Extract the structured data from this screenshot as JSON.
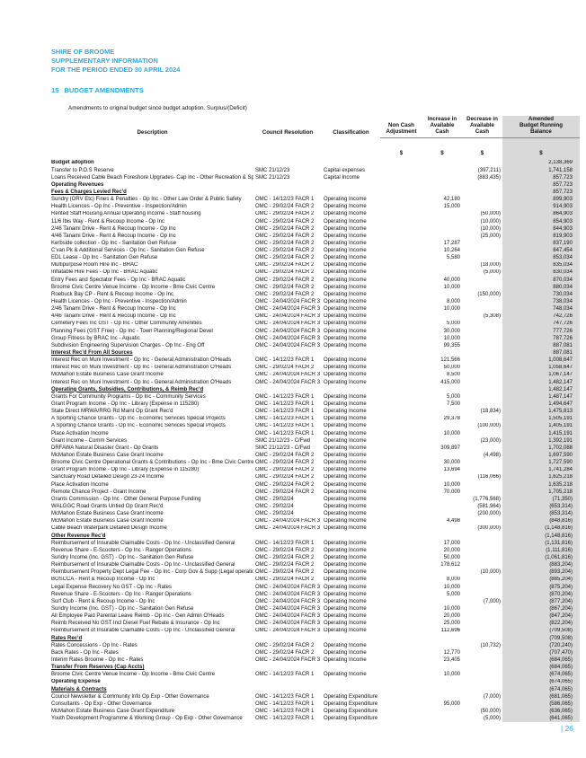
{
  "page": {
    "title_lines": [
      "SHIRE OF BROOME",
      "SUPPLEMENTARY INFORMATION",
      "FOR THE PERIOD ENDED 30 APRIL 2024"
    ],
    "section_number": "15",
    "section_title": "BUDGET AMENDMENTS",
    "subtitle": "Amendments to original budget since budget adoption. Surplus/(Deficit)",
    "page_number": "| 26",
    "accent_color": "#29ABE2",
    "balance_column_bg": "#D9D9D9"
  },
  "table": {
    "columns": {
      "description": "Description",
      "council_resolution": "Council Resolution",
      "classification": "Classification",
      "non_cash_adjustment": "Non Cash\nAdjustment",
      "increase_available_cash": "Increase in\nAvailable\nCash",
      "decrease_available_cash": "Decrease in\nAvailable\nCash",
      "amended_budget_running_balance": "Amended\nBudget Running\nBalance"
    },
    "currency_symbol": "$",
    "rows": [
      {
        "kind": "section",
        "d": "Budget adoption",
        "bal": "2,138,369"
      },
      {
        "d": "Transfer to P.O.S Reserve",
        "res": "SMC 21/12/23",
        "cls": "Capital expenses",
        "dec": "(397,211)",
        "bal": "1,741,158"
      },
      {
        "d": "Loans Received Cable Beach Foreshore Upgrades- Cap Inc - Other Recreation & Sport",
        "res": "SMC 21/12/23",
        "cls": "Capital Income",
        "dec": "(883,435)",
        "bal": "857,723"
      },
      {
        "kind": "section",
        "d": "Operating Revenues",
        "bal": "857,723"
      },
      {
        "kind": "subsection",
        "d": "Fees & Charges Levied Rec'd",
        "bal": "857,723"
      },
      {
        "d": "Sundry (ORV Etc) Fines & Penalties - Op Inc - Other Law Order & Public Safety",
        "res": "OMC - 14/12/23 FACR 1",
        "cls": "Operating Income",
        "inc": "42,180",
        "bal": "899,903"
      },
      {
        "d": "Health Licences - Op Inc - Preventive - Inspection/Admin",
        "res": "OMC - 29/02/24 FACR 2",
        "cls": "Operating Income",
        "inc": "15,000",
        "bal": "914,903"
      },
      {
        "d": "Rented Staff Housing Annual Operating Income - Staff housing",
        "res": "OMC - 29/02/24 FACR 2",
        "cls": "Operating Income",
        "dec": "(50,000)",
        "bal": "864,903"
      },
      {
        "d": "11/6 Ibis Way - Rent & Recoup Income - Op Inc",
        "res": "OMC - 29/02/24 FACR 2",
        "cls": "Operating Income",
        "dec": "(10,000)",
        "bal": "854,903"
      },
      {
        "d": "2/46 Tanami Drive - Rent & Recoup Income - Op Inc",
        "res": "OMC - 29/02/24 FACR 2",
        "cls": "Operating Income",
        "dec": "(10,000)",
        "bal": "844,903"
      },
      {
        "d": "4/46 Tanami Drive - Rent & Recoup Income - Op Inc",
        "res": "OMC - 29/02/24 FACR 2",
        "cls": "Operating Income",
        "dec": "(25,000)",
        "bal": "819,903"
      },
      {
        "d": "Kerbside collection - Op Inc - Sanitation Gen Refuse",
        "res": "OMC - 29/02/24 FACR 2",
        "cls": "Operating Income",
        "inc": "17,287",
        "bal": "837,190"
      },
      {
        "d": "C'van Pk & Additional  Services - Op Inc - Sanitation Gen Refuse",
        "res": "OMC - 29/02/24 FACR 2",
        "cls": "Operating Income",
        "inc": "10,264",
        "bal": "847,454"
      },
      {
        "d": "EDL Lease  - Op Inc - Sanitation Gen Refuse",
        "res": "OMC - 29/02/24 FACR 2",
        "cls": "Operating Income",
        "inc": "5,580",
        "bal": "853,034"
      },
      {
        "d": "Multipurpose Room Hire Inc - BRAC",
        "res": "OMC - 29/02/24 FACR 2",
        "cls": "Operating Income",
        "dec": "(18,000)",
        "bal": "835,034"
      },
      {
        "d": "Inflatable Hire Fees - Op Inc - BRAC Aquatic",
        "res": "OMC - 29/02/24 FACR 2",
        "cls": "Operating Income",
        "dec": "(5,000)",
        "bal": "830,034"
      },
      {
        "d": "Entry Fees and Spectator Fees - Op Inc - BRAC Aquatic",
        "res": "OMC - 29/02/24 FACR 2",
        "cls": "Operating Income",
        "inc": "40,000",
        "bal": "870,034"
      },
      {
        "d": "Broome Civic Centre Venue Income - Op Income - Bme Civic Centre",
        "res": "OMC - 29/02/24 FACR 2",
        "cls": "Operating Income",
        "inc": "10,000",
        "bal": "880,034"
      },
      {
        "d": "Roebuck Bay CP - Rent & Recoup Income - Op Inc",
        "res": "OMC - 29/02/24 FACR 2",
        "cls": "Operating Income",
        "dec": "(150,000)",
        "bal": "730,034"
      },
      {
        "d": "Health Licences - Op Inc - Preventive - Inspection/Admin",
        "res": "OMC - 24/04/2024 FACR 3",
        "cls": "Operating Income",
        "inc": "8,000",
        "bal": "738,034"
      },
      {
        "d": "2/46 Tanami Drive - Rent & Recoup Income - Op Inc",
        "res": "OMC - 24/04/2024 FACR 3",
        "cls": "Operating Income",
        "inc": "10,000",
        "bal": "748,034"
      },
      {
        "d": "4/46 Tanami Drive - Rent & Recoup Income - Op Inc",
        "res": "OMC - 24/04/2024 FACR 3",
        "cls": "Operating Income",
        "dec": "(5,308)",
        "bal": "742,726"
      },
      {
        "d": "Cemetery Fees Inc GST - Op Inc - Other Community Amenities",
        "res": "OMC - 24/04/2024 FACR 3",
        "cls": "Operating Income",
        "inc": "5,000",
        "bal": "747,726"
      },
      {
        "d": "Planning Fees (GST Free) - Op Inc - Town Planning/Regional Devel",
        "res": "OMC - 24/04/2024 FACR 3",
        "cls": "Operating Income",
        "inc": "30,000",
        "bal": "777,726"
      },
      {
        "d": "Group Fitness by BRAC Inc - Aquatic",
        "res": "OMC - 24/04/2024 FACR 3",
        "cls": "Operating Income",
        "inc": "10,000",
        "bal": "787,726"
      },
      {
        "d": "Subdivision Engineering Supervision Charges - Op Inc - Eng Off",
        "res": "OMC - 24/04/2024 FACR 3",
        "cls": "Operating Income",
        "inc": "99,355",
        "bal": "887,081"
      },
      {
        "kind": "subsection",
        "d": "Interest Rec'd From All Sources",
        "bal": "887,081"
      },
      {
        "d": "Interest Rec on Muni Investment - Op Inc - General Administration O'Heads",
        "res": "OMC - 14/12/23 FACR 1",
        "cls": "Operating Income",
        "inc": "121,566",
        "bal": "1,008,647"
      },
      {
        "d": "Interest Rec on Muni Investment - Op Inc - General Administration O'Heads",
        "res": "OMC - 29/02/24 FACR 2",
        "cls": "Operating Income",
        "inc": "50,000",
        "bal": "1,058,647"
      },
      {
        "d": "McMahon Estate Business Case Grant Income",
        "res": "OMC - 24/04/2024 FACR 3",
        "cls": "Operating Income",
        "inc": "8,500",
        "bal": "1,067,147"
      },
      {
        "d": "Interest Rec on Muni Investment - Op Inc - General Administration O'Heads",
        "res": "OMC - 24/04/2024 FACR 3",
        "cls": "Operating Income",
        "inc": "415,000",
        "bal": "1,482,147"
      },
      {
        "kind": "subsection",
        "d": "Operating Grants, Subsidies, Contributions,  & Reimb Rec'd",
        "bal": "1,482,147"
      },
      {
        "d": "Grants For Community Programs  - Op Inc - Community Services",
        "res": "OMC - 14/12/23 FACR 1",
        "cls": "Operating Income",
        "inc": "5,000",
        "bal": "1,487,147"
      },
      {
        "d": "Grant Program Income - Op Inc - Library (Expense in 115280)",
        "res": "OMC - 14/12/23 FACR 1",
        "cls": "Operating Income",
        "inc": "7,500",
        "bal": "1,494,647"
      },
      {
        "d": "State Direct MRWA/RRG Rd Maint Op Grant Rec'd",
        "res": "OMC - 14/12/23 FACR 1",
        "cls": "Operating Income",
        "dec": "(18,834)",
        "bal": "1,475,813"
      },
      {
        "d": "A Sporting Chance Grants - Op Inc - Economic Services Special Projects",
        "res": "OMC - 14/12/23 FACR 1",
        "cls": "Operating Income",
        "inc": "29,378",
        "bal": "1,505,191"
      },
      {
        "d": "A Sporting Chance Grants - Op Inc - Economic Services Special Projects",
        "res": "OMC - 14/12/23 FACR 1",
        "cls": "Operating Income",
        "dec": "(100,000)",
        "bal": "1,405,191"
      },
      {
        "d": "Place Activation Income",
        "res": "OMC - 14/12/23 FACR 1",
        "cls": "Operating Income",
        "inc": "10,000",
        "bal": "1,415,191"
      },
      {
        "d": "Grant Income - Comm Services",
        "res": "SMC 21/12/23 - C/Fwd",
        "cls": "Operating Income",
        "dec": "(23,000)",
        "bal": "1,392,191"
      },
      {
        "d": "DRFAWA Natural Disaster Grant - Op Grants",
        "res": "SMC 21/12/23 - C/Fwd",
        "cls": "Operating Income",
        "inc": "309,897",
        "bal": "1,702,088"
      },
      {
        "d": "McMahon Estate Business Case Grant Income",
        "res": "OMC - 29/02/24 FACR 2",
        "cls": "Operating Income",
        "dec": "(4,498)",
        "bal": "1,697,590"
      },
      {
        "d": "Broome Civic Centre Operational Grants & Contributions - Op Inc - Bme Civic Centre",
        "res": "OMC - 29/02/24 FACR 2",
        "cls": "Operating Income",
        "inc": "30,000",
        "bal": "1,727,590"
      },
      {
        "d": "Grant Program Income - Op Inc - Library (Expense in 115280)",
        "res": "OMC - 29/02/24 FACR 2",
        "cls": "Operating Income",
        "inc": "13,694",
        "bal": "1,741,284"
      },
      {
        "d": "Sanctuary Road Detailed Design 23-24 Income",
        "res": "OMC - 29/02/24 FACR 2",
        "cls": "Operating Income",
        "dec": "(116,066)",
        "bal": "1,625,218"
      },
      {
        "d": "Place Activation Income",
        "res": "OMC - 29/02/24 FACR 2",
        "cls": "Operating Income",
        "inc": "10,000",
        "bal": "1,635,218"
      },
      {
        "d": "Remote Chance Project - Grant Income",
        "res": "OMC - 29/02/24 FACR 2",
        "cls": "Operating Income",
        "inc": "70,000",
        "bal": "1,705,218"
      },
      {
        "d": "Grants Commission - Op Inc - Other General Purpose Funding",
        "res": "OMC - 29/02/24",
        "cls": "Operating Income",
        "dec": "(1,776,568)",
        "bal": "(71,350)"
      },
      {
        "d": "WALGGC Road Grants Untied Op Grant Rec'd",
        "res": "OMC - 29/02/24",
        "cls": "Operating Income",
        "dec": "(581,964)",
        "bal": "(653,314)"
      },
      {
        "d": "McMahon Estate Business Case Grant Income",
        "res": "OMC - 29/02/24",
        "cls": "Operating Income",
        "dec": "(200,000)",
        "bal": "(853,314)"
      },
      {
        "d": "McMahon Estate Business Case Grant Income",
        "res": "OMC - 24/04/2024 FACR 3",
        "cls": "Operating Income",
        "inc": "4,498",
        "bal": "(848,816)"
      },
      {
        "d": "Cable Beach Waterpark Detailed Design Income",
        "res": "OMC - 24/04/2024 FACR 3",
        "cls": "Operating Income",
        "dec": "(300,000)",
        "bal": "(1,148,816)"
      },
      {
        "kind": "subsection",
        "d": "Other Revenue Rec'd",
        "bal": "(1,148,816)"
      },
      {
        "d": "Reimbursement of Insurable Claimable Costs  - Op Inc - Unclassified General",
        "res": "OMC - 14/12/23 FACR 1",
        "cls": "Operating Income",
        "inc": "17,000",
        "bal": "(1,131,816)"
      },
      {
        "d": "Revenue Share - E-Scooters - Op Inc - Ranger Operations",
        "res": "OMC - 29/02/24 FACR 2",
        "cls": "Operating Income",
        "inc": "20,000",
        "bal": "(1,111,816)"
      },
      {
        "d": "Sundry Income (Inc. GST) - Op Inc - Sanitation Gen Refuse",
        "res": "OMC - 29/02/24 FACR 2",
        "cls": "Operating Income",
        "inc": "50,000",
        "bal": "(1,061,816)"
      },
      {
        "d": "Reimbursement of Insurable Claimable Costs  - Op Inc - Unclassified General",
        "res": "OMC - 29/02/24 FACR 2",
        "cls": "Operating Income",
        "inc": "178,612",
        "bal": "(883,204)"
      },
      {
        "d": "Reimbursement Property Dept Legal Fee - Op Inc - Corp Gov & Supp (Legal operations)",
        "res": "OMC - 29/02/24 FACR 2",
        "cls": "Operating Income",
        "dec": "(10,000)",
        "bal": "(893,204)"
      },
      {
        "d": "BOSCCA - Rent & Recoup Income - Op Inc",
        "res": "OMC - 29/02/24 FACR 2",
        "cls": "Operating Income",
        "inc": "8,000",
        "bal": "(885,204)"
      },
      {
        "d": "Legal Expense Recovery No GST - Op Inc - Rates",
        "res": "OMC - 24/04/2024 FACR 3",
        "cls": "Operating Income",
        "inc": "10,000",
        "bal": "(875,204)"
      },
      {
        "d": "Revenue Share - E-Scooters - Op Inc - Ranger Operations",
        "res": "OMC - 24/04/2024 FACR 3",
        "cls": "Operating Income",
        "inc": "5,000",
        "bal": "(870,204)"
      },
      {
        "d": "Surf Club - Rent & Recoup Income - Op Inc",
        "res": "OMC - 24/04/2024 FACR 3",
        "cls": "Operating Income",
        "dec": "(7,000)",
        "bal": "(877,204)"
      },
      {
        "d": "Sundry Income (Inc. GST) - Op Inc - Sanitation Gen Refuse",
        "res": "OMC - 24/04/2024 FACR 3",
        "cls": "Operating Income",
        "inc": "10,000",
        "bal": "(867,204)"
      },
      {
        "d": "All Employee Paid Parental Leave Reimb - Op Inc - Gen Admin O'Heads",
        "res": "OMC - 24/04/2024 FACR 3",
        "cls": "Operating Income",
        "inc": "20,000",
        "bal": "(847,204)"
      },
      {
        "d": "Reimb  Received No GST Incl Diesel Fuel Rebate & Insurance - Op Inc",
        "res": "OMC - 24/04/2024 FACR 3",
        "cls": "Operating Income",
        "inc": "25,000",
        "bal": "(822,204)"
      },
      {
        "d": "Reimbursement of Insurable Claimable Costs  - Op Inc - Unclassified General",
        "res": "OMC - 24/04/2024 FACR 3",
        "cls": "Operating Income",
        "inc": "112,696",
        "bal": "(709,508)"
      },
      {
        "kind": "subsection",
        "d": "Rates Rec'd",
        "bal": "(709,508)"
      },
      {
        "d": "Rates Concessions - Op Inc - Rates",
        "res": "OMC - 29/02/24 FACR 2",
        "cls": "Operating Income",
        "dec": "(10,732)",
        "bal": "(720,240)"
      },
      {
        "d": "Back Rates - Op Inc - Rates",
        "res": "OMC - 29/02/24 FACR 2",
        "cls": "Operating Income",
        "inc": "12,770",
        "bal": "(707,470)"
      },
      {
        "d": "Interim Rates Broome - Op Inc - Rates",
        "res": "OMC - 24/04/2024 FACR 3",
        "cls": "Operating Income",
        "inc": "23,405",
        "bal": "(684,065)"
      },
      {
        "kind": "subsection",
        "d": "Transfer From Reserves (Cap Accts)",
        "bal": "(684,065)"
      },
      {
        "d": "Broome Civic Centre Venue Income - Op Income - Bme Civic Centre",
        "res": "OMC - 14/12/23 FACR 1",
        "cls": "Operating Income",
        "inc": "10,000",
        "bal": "(674,065)"
      },
      {
        "kind": "section",
        "d": "Operating Expense",
        "bal": "(674,065)"
      },
      {
        "kind": "subsection",
        "d": "Materials & Contracts",
        "bal": "(674,065)"
      },
      {
        "d": "Council Newsletter & Community Info Op Exp - Other Governance",
        "res": "OMC - 14/12/23 FACR 1",
        "cls": "Operating Expenditure",
        "dec": "(7,000)",
        "bal": "(681,065)"
      },
      {
        "d": "Consultants - Op Exp - Other Governance",
        "res": "OMC - 14/12/23 FACR 1",
        "cls": "Operating Expenditure",
        "inc": "95,000",
        "bal": "(586,065)"
      },
      {
        "d": "McMahon Estate Business Case Grant Expenditure",
        "res": "OMC - 14/12/23 FACR 1",
        "cls": "Operating Expenditure",
        "dec": "(50,000)",
        "bal": "(636,065)"
      },
      {
        "d": "Youth Development Programme & Working Group - Op Exp - Other Governance",
        "res": "OMC - 14/12/23 FACR 1",
        "cls": "Operating Expenditure",
        "dec": "(5,000)",
        "bal": "(641,065)"
      }
    ]
  }
}
